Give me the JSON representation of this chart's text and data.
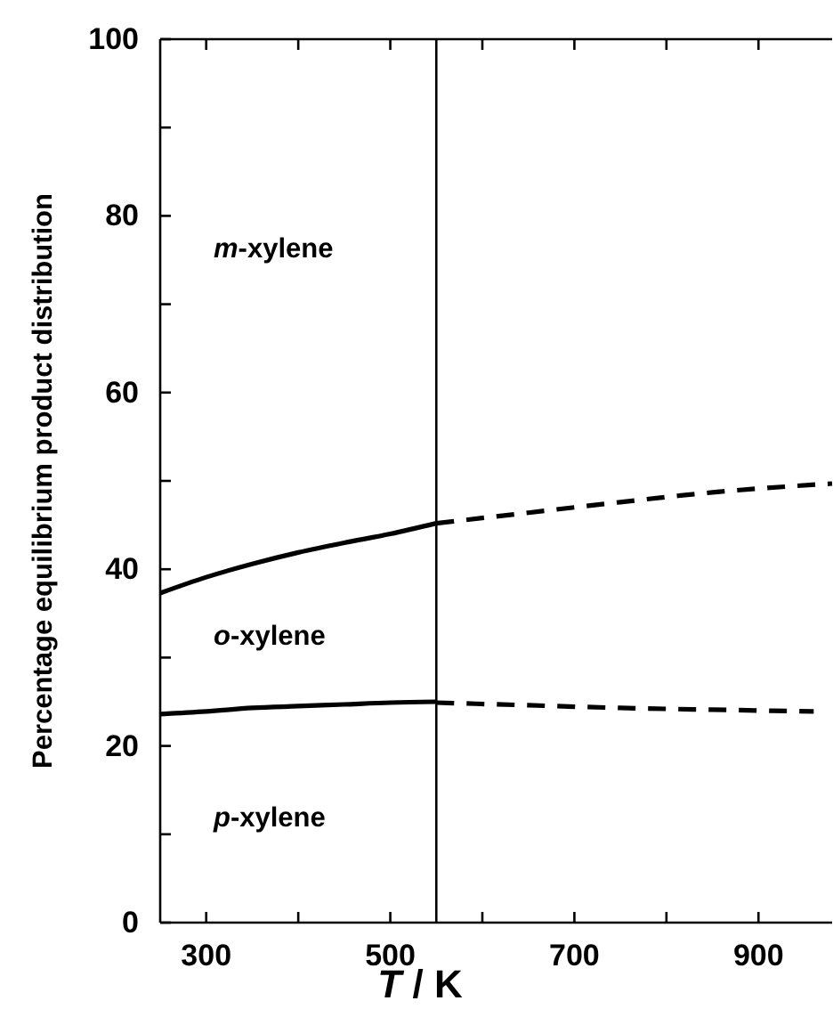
{
  "chart_data": {
    "type": "line",
    "xlabel": "T / K",
    "ylabel": "Percentage equilibrium product distribution",
    "xlim": [
      250,
      980
    ],
    "ylim": [
      0,
      100
    ],
    "xticks": [
      300,
      {
        "value": 400,
        "label": null
      },
      500,
      {
        "value": 600,
        "label": null
      },
      700,
      {
        "value": 800,
        "label": null
      },
      900
    ],
    "yticks": [
      0,
      {
        "value": 10,
        "label": null
      },
      20,
      {
        "value": 30,
        "label": null
      },
      40,
      {
        "value": 50,
        "label": null
      },
      60,
      {
        "value": 70,
        "label": null
      },
      80,
      {
        "value": 90,
        "label": null
      },
      100
    ],
    "grid": false,
    "marker": "none",
    "series": [
      {
        "color": "#000000",
        "line_style": "solid",
        "x": [
          250,
          300,
          350,
          400,
          450,
          500,
          550
        ],
        "values": [
          37.3,
          39.1,
          40.6,
          41.9,
          43.0,
          44.0,
          45.2
        ]
      },
      {
        "color": "#000000",
        "line_style": "solid",
        "x": [
          250,
          300,
          350,
          400,
          450,
          500,
          550
        ],
        "values": [
          23.6,
          23.9,
          24.3,
          24.5,
          24.7,
          24.9,
          25.0
        ]
      },
      {
        "color": "#000000",
        "line_style": "dashed",
        "x": [
          550,
          650,
          750,
          850,
          980
        ],
        "values": [
          45.2,
          46.4,
          47.6,
          48.7,
          49.7
        ]
      },
      {
        "color": "#000000",
        "line_style": "dashed",
        "x": [
          550,
          650,
          750,
          850,
          960
        ],
        "values": [
          24.9,
          24.6,
          24.3,
          24.1,
          23.9
        ]
      }
    ],
    "ref_lines": [
      {
        "axis": "x",
        "value": 550,
        "color": "#000000"
      }
    ],
    "annotations": [
      "m-xylene",
      "o-xylene",
      "p-xylene"
    ]
  }
}
